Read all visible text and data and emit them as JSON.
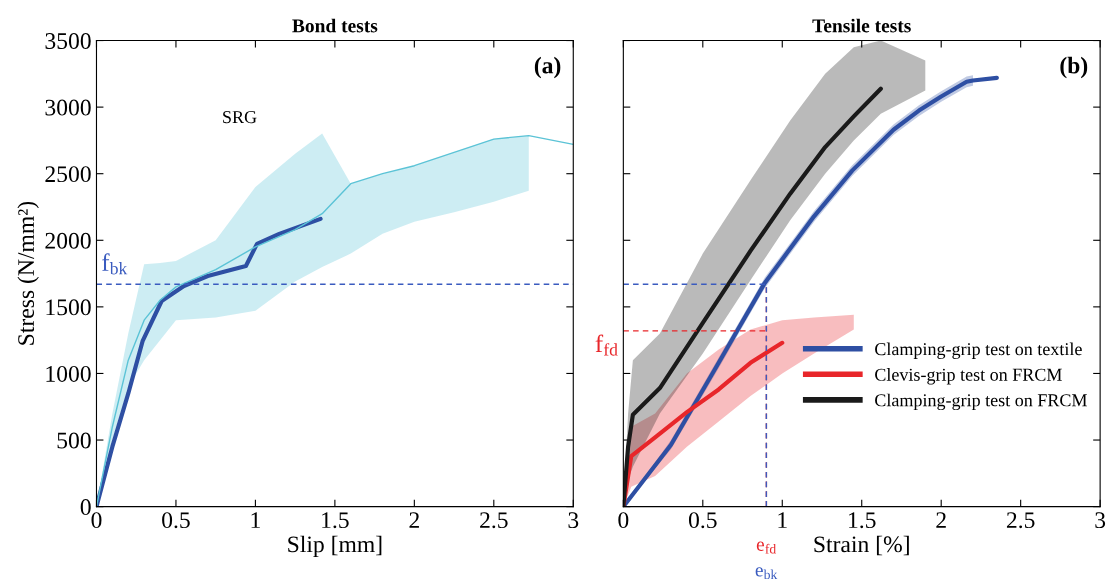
{
  "chart_data": [
    {
      "type": "line",
      "title": "Bond tests",
      "xlabel": "Slip [mm]",
      "ylabel": "Stress (N/mm²)",
      "xlim": [
        0,
        3
      ],
      "xticks": [
        0,
        0.5,
        1,
        1.5,
        2,
        2.5,
        3
      ],
      "ylim": [
        0,
        3500
      ],
      "yticks": [
        0,
        500,
        1000,
        1500,
        2000,
        2500,
        3000,
        3500
      ],
      "annotations": [
        "(a)",
        "SRG"
      ],
      "ref_lines": [
        {
          "axis": "y",
          "value": 1670,
          "label": "f$_{bk}$",
          "color": "#3a5bbf",
          "line_style": "dashed"
        }
      ],
      "series": [
        {
          "color": "#2e4fa3",
          "x": [
            0,
            0.1,
            0.2,
            0.29,
            0.41,
            0.55,
            0.7,
            0.94,
            1.01,
            1.15,
            1.41
          ],
          "values": [
            0,
            450,
            850,
            1242,
            1544,
            1657,
            1732,
            1807,
            1973,
            2048,
            2161
          ]
        },
        {
          "color": "#5bc3d6",
          "x": [
            0,
            0.1,
            0.2,
            0.3,
            0.4,
            0.5,
            0.75,
            1.0,
            1.25,
            1.42,
            1.6,
            1.8,
            2.0,
            2.25,
            2.5,
            2.72,
            3.0
          ],
          "values": [
            0,
            600,
            1100,
            1400,
            1550,
            1650,
            1780,
            1950,
            2080,
            2200,
            2425,
            2500,
            2560,
            2660,
            2760,
            2786,
            2720
          ],
          "lower": [
            0,
            500,
            900,
            1100,
            1250,
            1400,
            1420,
            1470,
            1690,
            1800,
            1900,
            2050,
            2140,
            2210,
            2290,
            2372,
            null
          ],
          "upper": [
            0,
            700,
            1300,
            1820,
            1830,
            1845,
            2000,
            2400,
            2650,
            2801,
            2425,
            2500,
            2560,
            2660,
            2760,
            2786,
            null
          ]
        }
      ]
    },
    {
      "type": "line",
      "title": "Tensile tests",
      "xlabel": "Strain [%]",
      "xlim": [
        0,
        3
      ],
      "xticks": [
        0,
        0.5,
        1,
        1.5,
        2,
        2.5,
        3
      ],
      "ylim": [
        0,
        3500
      ],
      "yticks": [
        0,
        500,
        1000,
        1500,
        2000,
        2500,
        3000,
        3500
      ],
      "tick_labels": "x",
      "annotations": [
        "(b)"
      ],
      "legend": "bottom right",
      "ref_lines": [
        {
          "axis": "y",
          "value": 1670,
          "color": "#3a5bbf",
          "line_style": "dashed"
        },
        {
          "axis": "y",
          "value": 1320,
          "label": "f$_{fd}$",
          "color": "#e8262a",
          "line_style": "dashed"
        },
        {
          "axis": "x",
          "value": 0.9,
          "label": "e$_{fd}$",
          "color": "#e8262a",
          "line_style": "dashed"
        },
        {
          "axis": "x",
          "value": 0.9,
          "label": "e$_{bk}$",
          "color": "#3a5bbf",
          "line_style": "dashed"
        }
      ],
      "series": [
        {
          "name": "Clamping-grip test on textile",
          "color": "#2e4fa3",
          "x": [
            0,
            0.3,
            0.6,
            0.89,
            1.2,
            1.44,
            1.7,
            1.86,
            2.0,
            2.16,
            2.2,
            2.35
          ],
          "values": [
            0,
            465,
            1080,
            1680,
            2180,
            2523,
            2830,
            2974,
            3080,
            3190,
            3200,
            3220
          ],
          "lower": [
            0,
            430,
            1040,
            1640,
            2140,
            2483,
            2790,
            2934,
            3040,
            3150,
            3160,
            null
          ],
          "upper": [
            0,
            500,
            1120,
            1720,
            2220,
            2563,
            2870,
            3014,
            3120,
            3230,
            3240,
            null
          ]
        },
        {
          "name": "Clevis-grip test on FRCM",
          "color": "#e8262a",
          "x": [
            0,
            0.05,
            0.2,
            0.4,
            0.6,
            0.8,
            1.0,
            1.2,
            1.45
          ],
          "values": [
            0,
            380,
            520,
            710,
            880,
            1080,
            1230,
            null,
            null
          ],
          "lower": [
            0,
            150,
            230,
            450,
            640,
            830,
            1000,
            1150,
            1330
          ],
          "upper": [
            0,
            600,
            700,
            1000,
            1180,
            1330,
            1400,
            1420,
            1440
          ]
        },
        {
          "name": "Clamping-grip test on FRCM",
          "color": "#1a1a1a",
          "x": [
            0,
            0.03,
            0.06,
            0.23,
            0.5,
            0.8,
            1.05,
            1.27,
            1.45,
            1.62,
            1.9
          ],
          "values": [
            0,
            450,
            690,
            890,
            1380,
            1920,
            2350,
            2700,
            2930,
            3138,
            null
          ],
          "lower": [
            0,
            200,
            300,
            700,
            1150,
            1700,
            2150,
            2500,
            2750,
            2950,
            3125
          ],
          "upper": [
            0,
            700,
            1100,
            1300,
            1900,
            2450,
            2900,
            3250,
            3450,
            3500,
            3350
          ]
        }
      ]
    }
  ]
}
